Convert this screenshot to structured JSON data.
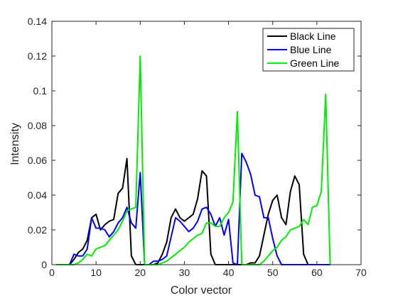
{
  "chart_data": {
    "type": "line",
    "title": "",
    "xlabel": "Color vector",
    "ylabel": "Intensity",
    "xlim": [
      0,
      70
    ],
    "ylim": [
      0,
      0.14
    ],
    "xticks": [
      0,
      10,
      20,
      30,
      40,
      50,
      60,
      70
    ],
    "xtick_labels": [
      "0",
      "10",
      "20",
      "30",
      "40",
      "50",
      "60",
      "70"
    ],
    "yticks": [
      0,
      0.02,
      0.04,
      0.06,
      0.08,
      0.1,
      0.12,
      0.14
    ],
    "ytick_labels": [
      "0",
      "0.02",
      "0.04",
      "0.06",
      "0.08",
      "0.1",
      "0.12",
      "0.14"
    ],
    "grid": false,
    "legend_position": "top-right",
    "x": [
      1,
      2,
      3,
      4,
      5,
      6,
      7,
      8,
      9,
      10,
      11,
      12,
      13,
      14,
      15,
      16,
      17,
      18,
      19,
      20,
      21,
      22,
      23,
      24,
      25,
      26,
      27,
      28,
      29,
      30,
      31,
      32,
      33,
      34,
      35,
      36,
      37,
      38,
      39,
      40,
      41,
      42,
      43,
      44,
      45,
      46,
      47,
      48,
      49,
      50,
      51,
      52,
      53,
      54,
      55,
      56,
      57,
      58,
      59,
      60,
      61,
      62,
      63
    ],
    "series": [
      {
        "name": "Black Line",
        "color": "#000000",
        "values": [
          0,
          0,
          0,
          0,
          0.003,
          0.007,
          0.009,
          0.014,
          0.027,
          0.029,
          0.02,
          0.023,
          0.025,
          0.026,
          0.041,
          0.044,
          0.061,
          0.005,
          0,
          0,
          0,
          0,
          0,
          0.001,
          0.006,
          0.013,
          0.027,
          0.032,
          0.027,
          0.025,
          0.027,
          0.029,
          0.038,
          0.054,
          0.051,
          0.006,
          0,
          0,
          0,
          0,
          0,
          0,
          0,
          0,
          0.001,
          0.001,
          0.005,
          0.017,
          0.029,
          0.037,
          0.04,
          0.027,
          0.023,
          0.042,
          0.051,
          0.046,
          0.006,
          0,
          0,
          0,
          0,
          0,
          0
        ]
      },
      {
        "name": "Blue Line",
        "color": "#0000ff",
        "values": [
          0,
          0,
          0,
          0,
          0.006,
          0.005,
          0.005,
          0.009,
          0.027,
          0.021,
          0.021,
          0.02,
          0.016,
          0.019,
          0.024,
          0.027,
          0.033,
          0.024,
          0.021,
          0.053,
          0,
          0,
          0.002,
          0.002,
          0.003,
          0.005,
          0.016,
          0.027,
          0.025,
          0.022,
          0.019,
          0.021,
          0.025,
          0.032,
          0.033,
          0.029,
          0.022,
          0.027,
          0.017,
          0.026,
          0.001,
          0,
          0.064,
          0.059,
          0.052,
          0.04,
          0.039,
          0.027,
          0.027,
          0.015,
          0.005,
          0,
          0,
          0,
          0,
          0,
          0,
          0,
          0,
          0,
          0,
          0,
          0
        ]
      },
      {
        "name": "Green Line",
        "color": "#00ee00",
        "values": [
          0,
          0,
          0,
          0,
          0,
          0.001,
          0.003,
          0.006,
          0.005,
          0.009,
          0.01,
          0.011,
          0.014,
          0.017,
          0.02,
          0.025,
          0.031,
          0.032,
          0.033,
          0.12,
          0,
          0,
          0,
          0,
          0.001,
          0.002,
          0.004,
          0.006,
          0.008,
          0.01,
          0.013,
          0.015,
          0.017,
          0.018,
          0.024,
          0.024,
          0.022,
          0.022,
          0.027,
          0.03,
          0.036,
          0.088,
          0,
          0,
          0,
          0,
          0,
          0.002,
          0.005,
          0.008,
          0.01,
          0.014,
          0.016,
          0.02,
          0.021,
          0.022,
          0.026,
          0.023,
          0.033,
          0.034,
          0.042,
          0.098,
          0
        ]
      }
    ]
  }
}
